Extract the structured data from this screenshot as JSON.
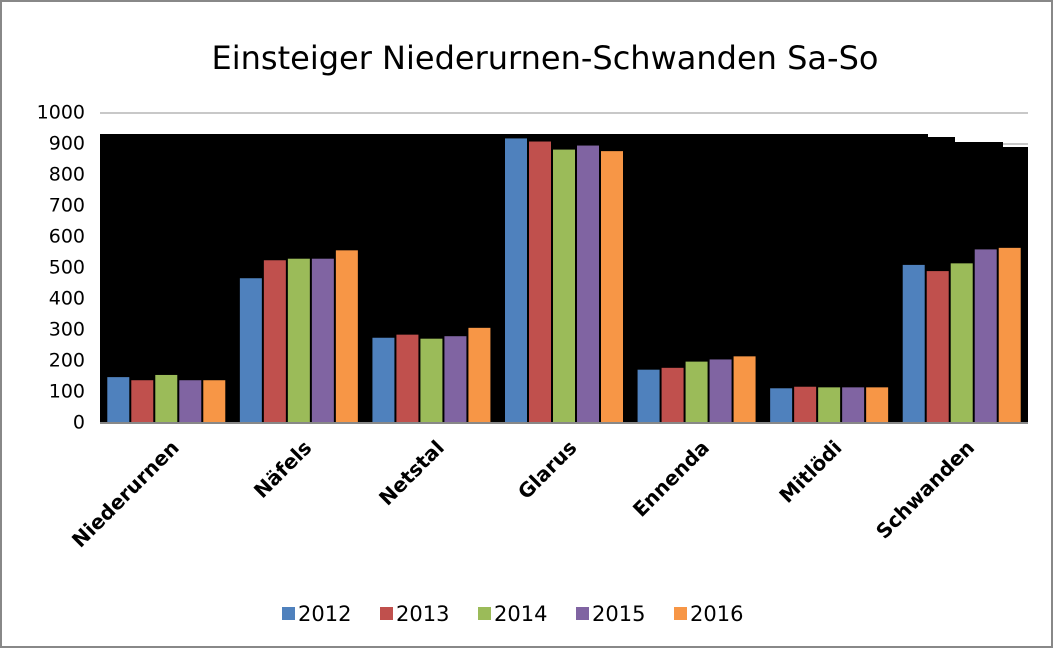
{
  "chart_data": {
    "type": "bar",
    "title": "Einsteiger Niederurnen-Schwanden Sa-So",
    "categories": [
      "Niederurnen",
      "Näfels",
      "Netstal",
      "Glarus",
      "Ennenda",
      "Mitlödi",
      "Schwanden"
    ],
    "series": [
      {
        "name": "2012",
        "color": "#4f81bd",
        "values": [
          148,
          467,
          275,
          918,
          172,
          112,
          510
        ]
      },
      {
        "name": "2013",
        "color": "#c0504d",
        "values": [
          138,
          525,
          285,
          908,
          178,
          117,
          490
        ]
      },
      {
        "name": "2014",
        "color": "#9bbb59",
        "values": [
          155,
          530,
          272,
          882,
          198,
          115,
          515
        ]
      },
      {
        "name": "2015",
        "color": "#8064a2",
        "values": [
          138,
          530,
          280,
          895,
          205,
          115,
          560
        ]
      },
      {
        "name": "2016",
        "color": "#f79646",
        "values": [
          138,
          557,
          307,
          877,
          215,
          115,
          565
        ]
      }
    ],
    "ylim": [
      0,
      1000
    ],
    "yticks": [
      0,
      100,
      200,
      300,
      400,
      500,
      600,
      700,
      800,
      900,
      1000
    ],
    "grid": true,
    "legend": "bottom"
  }
}
